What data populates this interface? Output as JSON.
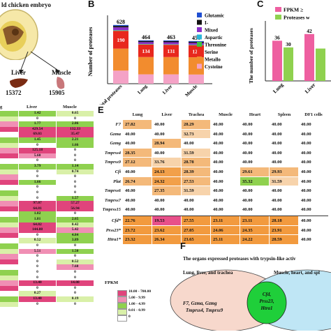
{
  "panel_a": {
    "embryo_label": "ld chicken embryo",
    "organs": [
      {
        "name": "Liver",
        "count": "15372"
      },
      {
        "name": "Muscle",
        "count": "15905"
      }
    ]
  },
  "panel_b": {
    "label": "B",
    "chart_data": {
      "type": "bar",
      "stacked": true,
      "ylabel": "Number of proteases",
      "categories": [
        "Total proteases",
        "Lung",
        "Liver",
        "Muscle"
      ],
      "totals": [
        628,
        464,
        463,
        456
      ],
      "serine_values": [
        190,
        134,
        131,
        128
      ],
      "legend": [
        {
          "name": "Glutamic",
          "color": "#1f4fd1"
        },
        {
          "name": "I-",
          "color": "#111111"
        },
        {
          "name": "Mixed",
          "color": "#8b2fc9"
        },
        {
          "name": "Aspartic",
          "color": "#2bb6d9"
        },
        {
          "name": "Threonine",
          "color": "#3ec43e"
        },
        {
          "name": "Serine",
          "color": "#e8281d"
        },
        {
          "name": "Metallo",
          "color": "#f28c2e"
        },
        {
          "name": "Cysteine",
          "color": "#f4a2c6"
        }
      ],
      "segments": [
        [
          140,
          235,
          190,
          5,
          3,
          30,
          15,
          10
        ],
        [
          100,
          185,
          134,
          4,
          2,
          20,
          12,
          7
        ],
        [
          100,
          185,
          131,
          4,
          2,
          22,
          12,
          7
        ],
        [
          98,
          185,
          128,
          4,
          2,
          20,
          12,
          7
        ]
      ],
      "ylim": [
        0,
        700
      ]
    }
  },
  "panel_c": {
    "label": "C",
    "chart_data": {
      "type": "bar",
      "ylabel": "The number of proteases",
      "categories": [
        "Lung",
        "Liver"
      ],
      "series": [
        {
          "name": "FPKM ≥ ",
          "color": "#ee5fa0",
          "values": [
            36,
            42
          ]
        },
        {
          "name": "Proteases w",
          "color": "#8fd14f",
          "values": [
            30,
            29
          ]
        }
      ],
      "labels": [
        "36",
        "30",
        "42",
        ""
      ],
      "ylim": [
        0,
        45
      ]
    }
  },
  "panel_d": {
    "columns": [
      "g",
      "Liver",
      "Muscle"
    ],
    "rows": [
      [
        "1.42",
        "0.65"
      ],
      [
        "0",
        "0"
      ],
      [
        "1.77",
        "2.86"
      ],
      [
        "429.54",
        "132.33"
      ],
      [
        "69.03",
        "35.47"
      ],
      [
        "1.45",
        "2.21"
      ],
      [
        "0",
        "1.66"
      ],
      [
        "125.18",
        "0"
      ],
      [
        "5.60",
        "0"
      ],
      [
        "0",
        "0"
      ],
      [
        "3.79",
        "1.14"
      ],
      [
        "0",
        "0.74"
      ],
      [
        "0",
        "0"
      ],
      [
        "1.66",
        "0"
      ],
      [
        "0",
        "0"
      ],
      [
        "0",
        "0"
      ],
      [
        "0",
        "1.57"
      ],
      [
        "97.07",
        "57.27"
      ],
      [
        "64.81",
        "56.94"
      ],
      [
        "1.02",
        "0"
      ],
      [
        "1.81",
        "2.65"
      ],
      [
        "64.82",
        "0.42"
      ],
      [
        "144.88",
        "5.42"
      ],
      [
        "0",
        "4.84"
      ],
      [
        "0.52",
        "3.89"
      ],
      [
        "0",
        "0"
      ],
      [
        "5.51",
        "1.50"
      ],
      [
        "0",
        "0"
      ],
      [
        "0",
        "0.52"
      ],
      [
        "0",
        "7.68"
      ],
      [
        "0",
        "0"
      ],
      [
        "0",
        "0"
      ],
      [
        "13.40",
        "14.08"
      ],
      [
        "0",
        "0"
      ],
      [
        "0.27",
        "0"
      ],
      [
        "13.40",
        "0.19"
      ],
      [
        "0",
        "0"
      ]
    ],
    "legend_title": "FPKM",
    "legend": [
      {
        "label": "10.00 - 700.00",
        "color": "#e0447c"
      },
      {
        "label": "5.00 - 9.99",
        "color": "#f08fb4"
      },
      {
        "label": "1.00 - 4.99",
        "color": "#8fd14f"
      },
      {
        "label": "0.01 - 0.99",
        "color": "#d9f0a8"
      },
      {
        "label": "0",
        "color": "#ffffff"
      }
    ]
  },
  "panel_e": {
    "label": "E",
    "columns": [
      "Lung",
      "Liver",
      "Trachea",
      "Muscle",
      "Heart",
      "Spleen",
      "DF1 cells"
    ],
    "rows": [
      {
        "gene": "F7",
        "values": [
          "27.82",
          "40.00",
          "28.29",
          "40.00",
          "40.00",
          "40.00",
          "40.00"
        ]
      },
      {
        "gene": "Gzma",
        "values": [
          "40.00",
          "40.00",
          "32.73",
          "40.00",
          "40.00",
          "40.00",
          "40.00"
        ]
      },
      {
        "gene": "Gzmg",
        "values": [
          "40.00",
          "28.94",
          "40.00",
          "40.00",
          "40.00",
          "40.00",
          "40.00"
        ]
      },
      {
        "gene": "Tmprss4",
        "values": [
          "28.35",
          "40.00",
          "31.59",
          "40.00",
          "40.00",
          "40.00",
          "40.00"
        ]
      },
      {
        "gene": "Tmprss9",
        "values": [
          "27.12",
          "33.76",
          "28.78",
          "40.00",
          "40.00",
          "40.00",
          "40.00"
        ]
      },
      {
        "gene": "Cfi",
        "values": [
          "40.00",
          "24.13",
          "28.39",
          "40.00",
          "29.61",
          "29.93",
          "40.00"
        ]
      },
      {
        "gene": "Plat",
        "values": [
          "26.74",
          "24.32",
          "27.53",
          "40.00",
          "35.32",
          "31.59",
          "40.00"
        ]
      },
      {
        "gene": "Tmprss6",
        "values": [
          "40.00",
          "27.35",
          "31.59",
          "40.00",
          "40.00",
          "40.00",
          "40.00"
        ]
      },
      {
        "gene": "Tmprss7",
        "values": [
          "40.00",
          "40.00",
          "40.00",
          "40.00",
          "40.00",
          "40.00",
          "40.00"
        ]
      },
      {
        "gene": "Tmprss15",
        "values": [
          "40.00",
          "40.00",
          "40.00",
          "40.00",
          "40.00",
          "40.00",
          "40.00"
        ]
      },
      {
        "gene": "Cfd*",
        "values": [
          "22.76",
          "19.53",
          "27.55",
          "23.11",
          "23.11",
          "28.18",
          "40.00"
        ]
      },
      {
        "gene": "Prss23*",
        "values": [
          "23.72",
          "23.62",
          "27.05",
          "24.06",
          "24.35",
          "23.91",
          "40.00"
        ]
      },
      {
        "gene": "Htra1*",
        "values": [
          "23.32",
          "26.34",
          "23.65",
          "25.11",
          "24.22",
          "28.59",
          "40.00"
        ]
      }
    ]
  },
  "panel_f": {
    "label": "F",
    "title": "The organs expressed proteases with trypsin-like activ",
    "left_title": "Lung, liver, and trachea",
    "right_title": "Muscle, heart, and spl",
    "left_genes_1": "F7, Gzma, Gzmg",
    "left_genes_2": "Tmprss4, Tmprss9",
    "center_genes": [
      "Cfd,",
      "Prss23,",
      "Htra1"
    ]
  }
}
